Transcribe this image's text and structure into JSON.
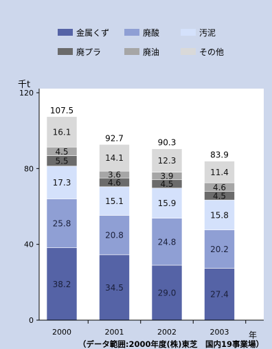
{
  "chart_data": {
    "type": "bar",
    "stacked": true,
    "categories": [
      "2000",
      "2001",
      "2002",
      "2003"
    ],
    "series": [
      {
        "name": "金属くず",
        "color": "#5563a6",
        "text_color": "#1a1f3a",
        "values": [
          38.2,
          34.5,
          29.0,
          27.4
        ]
      },
      {
        "name": "廃酸",
        "color": "#8f9fd4",
        "text_color": "#1a1f3a",
        "values": [
          25.8,
          20.8,
          24.8,
          20.2
        ]
      },
      {
        "name": "汚泥",
        "color": "#d4e1fb",
        "text_color": "#111111",
        "values": [
          17.3,
          15.1,
          15.9,
          15.8
        ]
      },
      {
        "name": "廃プラ",
        "color": "#6b6b6b",
        "text_color": "#111111",
        "values": [
          5.5,
          4.6,
          4.5,
          4.5
        ]
      },
      {
        "name": "廃油",
        "color": "#a6a6a6",
        "text_color": "#111111",
        "values": [
          4.5,
          3.6,
          3.9,
          4.6
        ]
      },
      {
        "name": "その他",
        "color": "#d9d9d9",
        "text_color": "#111111",
        "values": [
          16.1,
          14.1,
          12.3,
          11.4
        ]
      }
    ],
    "totals": [
      107.5,
      92.7,
      90.3,
      83.9
    ],
    "ylabel": "千t",
    "xlabel": "年",
    "ylim": [
      0,
      120
    ],
    "yticks": [
      0,
      40,
      80,
      120
    ],
    "grid": false,
    "legend_position": "top",
    "footnote": "（データ範囲:2000年度(株)東芝　国内19事業場）"
  }
}
